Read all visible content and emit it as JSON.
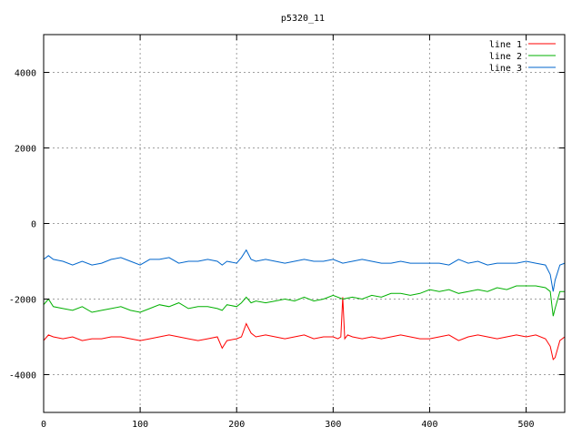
{
  "chart_data": {
    "type": "line",
    "title": "p5320_11",
    "xlim": [
      0,
      540
    ],
    "ylim": [
      -5000,
      5000
    ],
    "xticks": [
      0,
      100,
      200,
      300,
      400,
      500
    ],
    "yticks": [
      -4000,
      -2000,
      0,
      2000,
      4000
    ],
    "grid": true,
    "legend_position": "top-right",
    "series": [
      {
        "name": "line 1",
        "color": "#ff0000",
        "x": [
          0,
          5,
          10,
          20,
          30,
          40,
          50,
          60,
          70,
          80,
          90,
          100,
          110,
          120,
          130,
          140,
          150,
          160,
          170,
          180,
          185,
          190,
          200,
          205,
          210,
          215,
          220,
          230,
          240,
          250,
          260,
          270,
          280,
          290,
          300,
          305,
          308,
          310,
          312,
          315,
          320,
          330,
          340,
          350,
          360,
          370,
          380,
          390,
          400,
          410,
          420,
          430,
          440,
          450,
          460,
          470,
          480,
          490,
          500,
          510,
          520,
          525,
          528,
          530,
          535,
          540
        ],
        "y": [
          -3100,
          -2950,
          -3000,
          -3050,
          -3000,
          -3100,
          -3050,
          -3050,
          -3000,
          -3000,
          -3050,
          -3100,
          -3050,
          -3000,
          -2950,
          -3000,
          -3050,
          -3100,
          -3050,
          -3000,
          -3300,
          -3100,
          -3050,
          -3000,
          -2650,
          -2900,
          -3000,
          -2950,
          -3000,
          -3050,
          -3000,
          -2950,
          -3050,
          -3000,
          -3000,
          -3050,
          -3000,
          -1950,
          -3050,
          -2950,
          -3000,
          -3050,
          -3000,
          -3050,
          -3000,
          -2950,
          -3000,
          -3050,
          -3050,
          -3000,
          -2950,
          -3100,
          -3000,
          -2950,
          -3000,
          -3050,
          -3000,
          -2950,
          -3000,
          -2950,
          -3050,
          -3250,
          -3600,
          -3550,
          -3100,
          -3000
        ]
      },
      {
        "name": "line 2",
        "color": "#00b000",
        "x": [
          0,
          5,
          10,
          20,
          30,
          40,
          50,
          60,
          70,
          80,
          90,
          100,
          110,
          120,
          130,
          140,
          150,
          160,
          170,
          180,
          185,
          190,
          200,
          205,
          210,
          215,
          220,
          230,
          240,
          250,
          260,
          270,
          280,
          290,
          300,
          310,
          320,
          330,
          340,
          350,
          360,
          370,
          380,
          390,
          400,
          410,
          420,
          430,
          440,
          450,
          460,
          470,
          480,
          490,
          500,
          510,
          520,
          525,
          528,
          530,
          535,
          540
        ],
        "y": [
          -2150,
          -2000,
          -2200,
          -2250,
          -2300,
          -2200,
          -2350,
          -2300,
          -2250,
          -2200,
          -2300,
          -2350,
          -2250,
          -2150,
          -2200,
          -2100,
          -2250,
          -2200,
          -2200,
          -2250,
          -2300,
          -2150,
          -2200,
          -2100,
          -1950,
          -2100,
          -2050,
          -2100,
          -2050,
          -2000,
          -2050,
          -1950,
          -2050,
          -2000,
          -1900,
          -2000,
          -1950,
          -2000,
          -1900,
          -1950,
          -1850,
          -1850,
          -1900,
          -1850,
          -1750,
          -1800,
          -1750,
          -1850,
          -1800,
          -1750,
          -1800,
          -1700,
          -1750,
          -1650,
          -1650,
          -1650,
          -1700,
          -1800,
          -2450,
          -2250,
          -1800,
          -1800
        ]
      },
      {
        "name": "line 3",
        "color": "#0066cc",
        "x": [
          0,
          5,
          10,
          20,
          30,
          40,
          50,
          60,
          70,
          80,
          90,
          100,
          110,
          120,
          130,
          140,
          150,
          160,
          170,
          180,
          185,
          190,
          200,
          205,
          210,
          215,
          220,
          230,
          240,
          250,
          260,
          270,
          280,
          290,
          300,
          310,
          320,
          330,
          340,
          350,
          360,
          370,
          380,
          390,
          400,
          410,
          420,
          430,
          440,
          450,
          460,
          470,
          480,
          490,
          500,
          510,
          520,
          525,
          528,
          530,
          535,
          540
        ],
        "y": [
          -950,
          -850,
          -950,
          -1000,
          -1100,
          -1000,
          -1100,
          -1050,
          -950,
          -900,
          -1000,
          -1100,
          -950,
          -950,
          -900,
          -1050,
          -1000,
          -1000,
          -950,
          -1000,
          -1100,
          -1000,
          -1050,
          -900,
          -700,
          -950,
          -1000,
          -950,
          -1000,
          -1050,
          -1000,
          -950,
          -1000,
          -1000,
          -950,
          -1050,
          -1000,
          -950,
          -1000,
          -1050,
          -1050,
          -1000,
          -1050,
          -1050,
          -1050,
          -1050,
          -1100,
          -950,
          -1050,
          -1000,
          -1100,
          -1050,
          -1050,
          -1050,
          -1000,
          -1050,
          -1100,
          -1350,
          -1800,
          -1500,
          -1100,
          -1050
        ]
      }
    ]
  }
}
